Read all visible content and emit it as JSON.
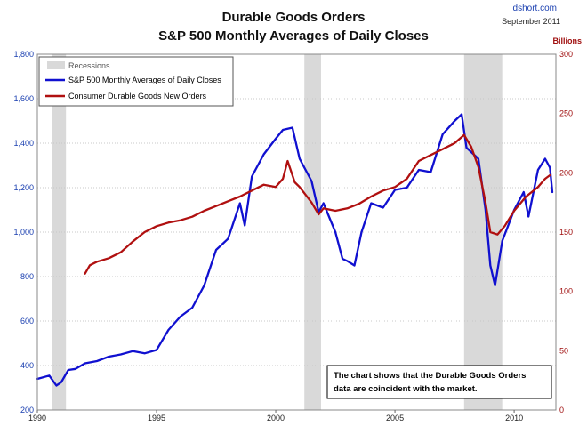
{
  "chart_data": {
    "type": "line",
    "title": "Durable Goods Orders",
    "subtitle": "S&P 500 Monthly Averages of Daily Closes",
    "source": "dshort.com",
    "date": "September 2011",
    "right_axis_label": "Billions",
    "x_range": [
      1990,
      2011.75
    ],
    "x_ticks": [
      "1990",
      "1995",
      "2000",
      "2005",
      "2010"
    ],
    "y_left": {
      "range": [
        200,
        1800
      ],
      "ticks": [
        "200",
        "400",
        "600",
        "800",
        "1,000",
        "1,200",
        "1,400",
        "1,600",
        "1,800"
      ]
    },
    "y_right": {
      "range": [
        0,
        300
      ],
      "ticks": [
        "0",
        "50",
        "100",
        "150",
        "200",
        "250",
        "300"
      ]
    },
    "recessions": [
      [
        1990.6,
        1991.2
      ],
      [
        2001.2,
        2001.9
      ],
      [
        2007.9,
        2009.5
      ]
    ],
    "legend": {
      "recessions_label": "Recessions",
      "items": [
        "S&P 500 Monthly Averages of Daily Closes",
        "Consumer Durable Goods New Orders"
      ]
    },
    "series": [
      {
        "name": "S&P 500 Monthly Averages of Daily Closes",
        "axis": "left",
        "color": "#1010d0",
        "x": [
          1990.0,
          1990.5,
          1990.8,
          1991.0,
          1991.3,
          1991.6,
          1992.0,
          1992.5,
          1993.0,
          1993.5,
          1994.0,
          1994.5,
          1995.0,
          1995.5,
          1996.0,
          1996.5,
          1997.0,
          1997.5,
          1998.0,
          1998.5,
          1998.7,
          1999.0,
          1999.5,
          2000.0,
          2000.3,
          2000.7,
          2001.0,
          2001.5,
          2001.8,
          2002.0,
          2002.5,
          2002.8,
          2003.0,
          2003.3,
          2003.6,
          2004.0,
          2004.5,
          2005.0,
          2005.5,
          2006.0,
          2006.5,
          2007.0,
          2007.5,
          2007.8,
          2008.0,
          2008.5,
          2008.8,
          2009.0,
          2009.2,
          2009.5,
          2010.0,
          2010.4,
          2010.6,
          2011.0,
          2011.3,
          2011.5,
          2011.6
        ],
        "values": [
          340,
          355,
          310,
          325,
          380,
          385,
          410,
          420,
          440,
          450,
          465,
          455,
          470,
          560,
          620,
          660,
          760,
          920,
          970,
          1130,
          1030,
          1250,
          1350,
          1420,
          1460,
          1470,
          1330,
          1230,
          1090,
          1130,
          1000,
          880,
          870,
          850,
          1000,
          1130,
          1110,
          1190,
          1200,
          1280,
          1270,
          1440,
          1500,
          1530,
          1380,
          1330,
          1100,
          850,
          760,
          960,
          1100,
          1180,
          1070,
          1280,
          1330,
          1290,
          1180
        ]
      },
      {
        "name": "Consumer Durable Goods New Orders",
        "axis": "right",
        "color": "#b01010",
        "x": [
          1992.0,
          1992.2,
          1992.5,
          1993.0,
          1993.5,
          1994.0,
          1994.5,
          1995.0,
          1995.5,
          1996.0,
          1996.5,
          1997.0,
          1997.5,
          1998.0,
          1998.5,
          1999.0,
          1999.5,
          2000.0,
          2000.3,
          2000.5,
          2000.8,
          2001.0,
          2001.5,
          2001.8,
          2002.0,
          2002.5,
          2003.0,
          2003.5,
          2004.0,
          2004.5,
          2005.0,
          2005.5,
          2006.0,
          2006.5,
          2007.0,
          2007.5,
          2007.9,
          2008.2,
          2008.5,
          2008.8,
          2009.0,
          2009.3,
          2009.6,
          2010.0,
          2010.5,
          2011.0,
          2011.3,
          2011.5
        ],
        "values": [
          115,
          122,
          125,
          128,
          133,
          142,
          150,
          155,
          158,
          160,
          163,
          168,
          172,
          176,
          180,
          185,
          190,
          188,
          195,
          210,
          192,
          188,
          175,
          165,
          170,
          168,
          170,
          174,
          180,
          185,
          188,
          195,
          210,
          215,
          220,
          225,
          232,
          222,
          205,
          175,
          150,
          148,
          155,
          168,
          180,
          188,
          195,
          198
        ]
      }
    ],
    "annotation": [
      "The chart shows that the Durable Goods Orders",
      "data are coincident with the market."
    ]
  }
}
